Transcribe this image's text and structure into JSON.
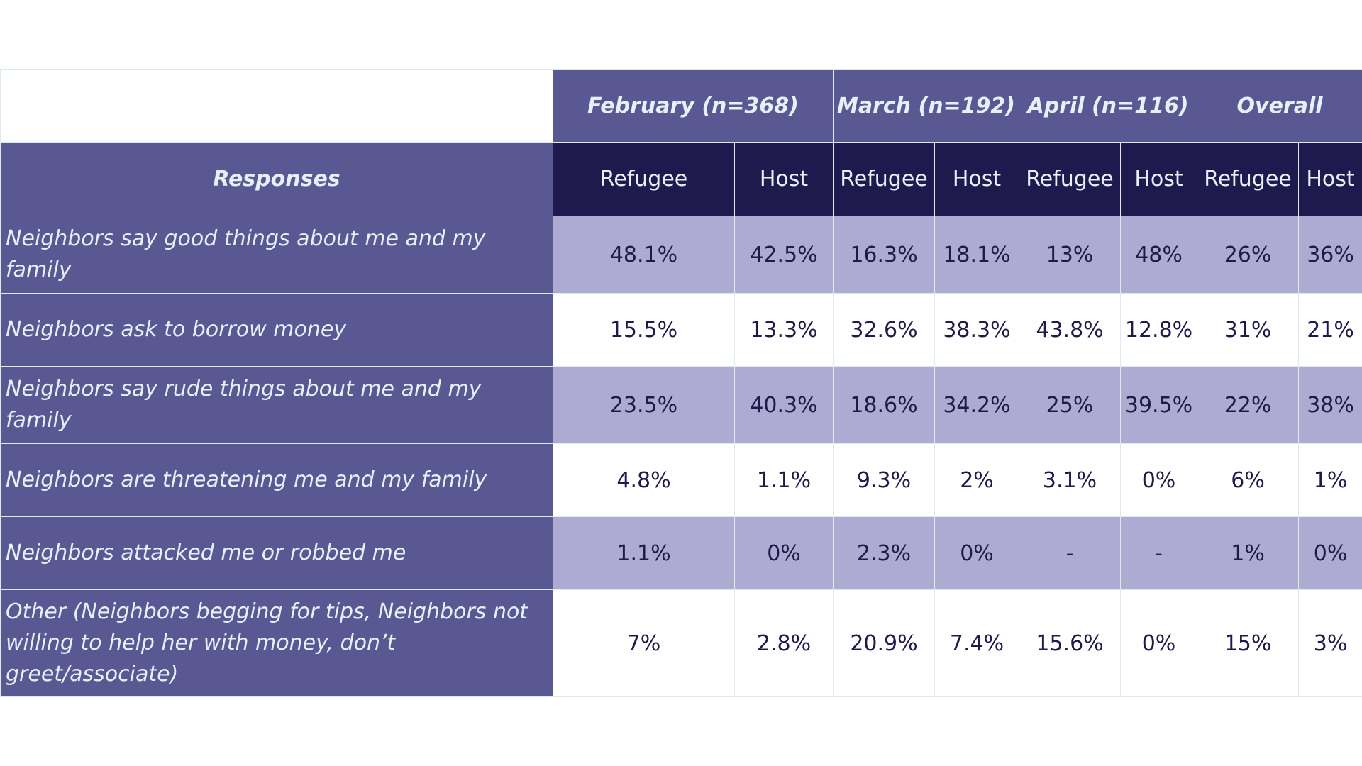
{
  "chart_data": {
    "type": "table",
    "corner_label": "",
    "row_header_label": "Responses",
    "groups": [
      {
        "label": "February (n=368)",
        "sub": [
          "Refugee",
          "Host"
        ]
      },
      {
        "label": "March (n=192)",
        "sub": [
          "Refugee",
          "Host"
        ]
      },
      {
        "label": "April (n=116)",
        "sub": [
          "Refugee",
          "Host"
        ]
      },
      {
        "label": "Overall",
        "sub": [
          "Refugee",
          "Host"
        ]
      }
    ],
    "rows": [
      {
        "label": "Neighbors say good things about me and my family",
        "values": [
          "48.1%",
          "42.5%",
          "16.3%",
          "18.1%",
          "13%",
          "48%",
          "26%",
          "36%"
        ]
      },
      {
        "label": "Neighbors ask to borrow money",
        "values": [
          "15.5%",
          "13.3%",
          "32.6%",
          "38.3%",
          "43.8%",
          "12.8%",
          "31%",
          "21%"
        ]
      },
      {
        "label": "Neighbors say rude things about me and my family",
        "values": [
          "23.5%",
          "40.3%",
          "18.6%",
          "34.2%",
          "25%",
          "39.5%",
          "22%",
          "38%"
        ]
      },
      {
        "label": "Neighbors are threatening me and my family",
        "values": [
          "4.8%",
          "1.1%",
          "9.3%",
          "2%",
          "3.1%",
          "0%",
          "6%",
          "1%"
        ]
      },
      {
        "label": "Neighbors attacked me or robbed me",
        "values": [
          "1.1%",
          "0%",
          "2.3%",
          "0%",
          "-",
          "-",
          "1%",
          "0%"
        ]
      },
      {
        "label": "Other (Neighbors begging for tips, Neighbors not willing to help her with money, don’t greet/associate)",
        "values": [
          "7%",
          "2.8%",
          "20.9%",
          "7.4%",
          "15.6%",
          "0%",
          "15%",
          "3%"
        ]
      }
    ]
  }
}
